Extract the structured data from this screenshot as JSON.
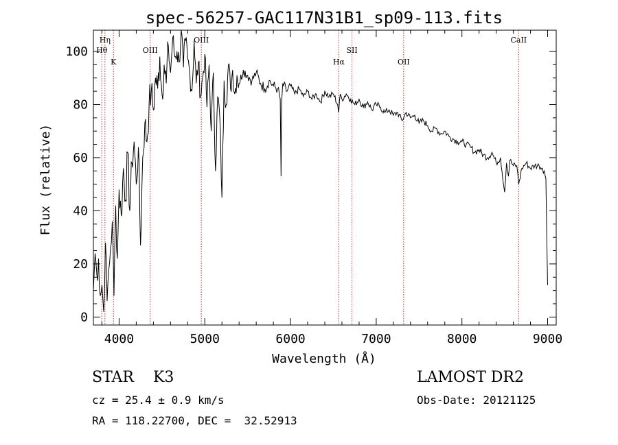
{
  "chart_data": {
    "type": "line",
    "title": "spec-56257-GAC117N31B1_sp09-113.fits",
    "xlabel": "Wavelength (Å)",
    "ylabel": "Flux (relative)",
    "xlim": [
      3700,
      9100
    ],
    "ylim": [
      -3,
      108
    ],
    "x_ticks": [
      4000,
      5000,
      6000,
      7000,
      8000,
      9000
    ],
    "y_ticks": [
      0,
      20,
      40,
      60,
      80,
      100
    ],
    "grid": false,
    "line_color": "#000000",
    "marker_color": "#b03030",
    "lines": [
      {
        "label": "Hη",
        "wavelength": 3835
      },
      {
        "label": "Hθ",
        "wavelength": 3798
      },
      {
        "label": "K",
        "wavelength": 3934
      },
      {
        "label": "OIII",
        "wavelength": 4363
      },
      {
        "label": "OIII",
        "wavelength": 4959
      },
      {
        "label": "Hα",
        "wavelength": 6563
      },
      {
        "label": "SII",
        "wavelength": 6717
      },
      {
        "label": "OII",
        "wavelength": 7320
      },
      {
        "label": "CaII",
        "wavelength": 8662
      }
    ],
    "series": [
      {
        "x": [
          3700,
          3720,
          3740,
          3760,
          3780,
          3800,
          3820,
          3840,
          3860,
          3880,
          3900,
          3920,
          3940,
          3960,
          3980,
          4000,
          4025,
          4050,
          4075,
          4100,
          4125,
          4150,
          4175,
          4200,
          4225,
          4250,
          4275,
          4300,
          4325,
          4350,
          4375,
          4400,
          4425,
          4450,
          4475,
          4500,
          4525,
          4550,
          4575,
          4600,
          4625,
          4650,
          4675,
          4700,
          4725,
          4750,
          4775,
          4800,
          4825,
          4850,
          4875,
          4900,
          4925,
          4950,
          4975,
          5000,
          5025,
          5050,
          5075,
          5100,
          5125,
          5150,
          5175,
          5200,
          5225,
          5250,
          5275,
          5300,
          5325,
          5350,
          5375,
          5400,
          5450,
          5500,
          5550,
          5600,
          5650,
          5700,
          5750,
          5800,
          5850,
          5880,
          5890,
          5896,
          5910,
          5950,
          6000,
          6050,
          6100,
          6150,
          6200,
          6250,
          6300,
          6350,
          6400,
          6450,
          6500,
          6550,
          6563,
          6580,
          6600,
          6650,
          6700,
          6750,
          6800,
          6850,
          6900,
          6950,
          7000,
          7050,
          7100,
          7150,
          7200,
          7250,
          7300,
          7350,
          7400,
          7450,
          7500,
          7550,
          7600,
          7650,
          7700,
          7750,
          7800,
          7850,
          7900,
          7950,
          8000,
          8050,
          8100,
          8150,
          8200,
          8250,
          8300,
          8350,
          8400,
          8450,
          8498,
          8520,
          8542,
          8560,
          8600,
          8640,
          8662,
          8700,
          8750,
          8800,
          8850,
          8900,
          8940,
          8960,
          8980,
          8990,
          9000
        ],
        "y": [
          10,
          24,
          16,
          22,
          8,
          12,
          2,
          28,
          6,
          18,
          26,
          36,
          8,
          42,
          22,
          48,
          38,
          56,
          44,
          62,
          40,
          58,
          66,
          50,
          64,
          27,
          60,
          73,
          66,
          80,
          85,
          78,
          90,
          86,
          98,
          84,
          95,
          88,
          102,
          92,
          105,
          98,
          100,
          96,
          108,
          94,
          104,
          97,
          92,
          85,
          104,
          88,
          96,
          83,
          90,
          99,
          79,
          95,
          70,
          92,
          55,
          83,
          75,
          45,
          89,
          80,
          95,
          86,
          93,
          84,
          91,
          88,
          93,
          91,
          89,
          92,
          88,
          86,
          89,
          87,
          86,
          82,
          53,
          80,
          88,
          85,
          87,
          84,
          86,
          83,
          85,
          82,
          84,
          81,
          85,
          83,
          84,
          80,
          77,
          84,
          82,
          84,
          82,
          80,
          82,
          79,
          81,
          78,
          80,
          79,
          77,
          78,
          76,
          77,
          74,
          77,
          75,
          76,
          73,
          74,
          72,
          70,
          71,
          69,
          70,
          68,
          67,
          66,
          66,
          65,
          64,
          62,
          63,
          61,
          60,
          62,
          58,
          60,
          47,
          58,
          53,
          59,
          57,
          57,
          50,
          56,
          58,
          56,
          57,
          57,
          56,
          55,
          52,
          30,
          12
        ]
      }
    ]
  },
  "info": {
    "object": "STAR    K3",
    "cz": "cz = 25.4 ± 0.9 km/s",
    "radec": "RA = 118.22700, DEC =  32.52913",
    "survey": "LAMOST DR2",
    "obsdate": "Obs-Date: 20121125"
  }
}
